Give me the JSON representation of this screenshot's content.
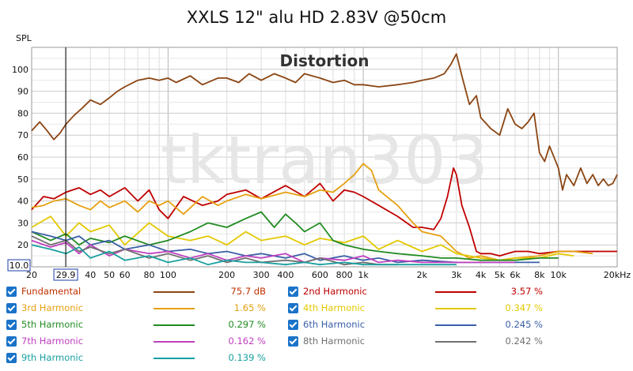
{
  "chart_data": {
    "type": "line",
    "title": "XXLS 12\" alu HD 2.83V @50cm",
    "ylabel": "SPL",
    "x_scale": "log",
    "xlim": [
      20,
      20000
    ],
    "ylim": [
      10,
      110
    ],
    "x_ticks": [
      {
        "v": 20,
        "t": "20"
      },
      {
        "v": 40,
        "t": "40"
      },
      {
        "v": 50,
        "t": "50"
      },
      {
        "v": 60,
        "t": "60"
      },
      {
        "v": 80,
        "t": "80"
      },
      {
        "v": 100,
        "t": "100"
      },
      {
        "v": 200,
        "t": "200"
      },
      {
        "v": 300,
        "t": "300"
      },
      {
        "v": 400,
        "t": "400"
      },
      {
        "v": 600,
        "t": "600"
      },
      {
        "v": 800,
        "t": "800"
      },
      {
        "v": 1000,
        "t": "1k"
      },
      {
        "v": 2000,
        "t": "2k"
      },
      {
        "v": 3000,
        "t": "3k"
      },
      {
        "v": 4000,
        "t": "4k"
      },
      {
        "v": 5000,
        "t": "5k"
      },
      {
        "v": 6000,
        "t": "6k"
      },
      {
        "v": 8000,
        "t": "8k"
      },
      {
        "v": 10000,
        "t": "10k"
      },
      {
        "v": 20000,
        "t": "20kHz"
      }
    ],
    "y_ticks": [
      {
        "v": 20,
        "t": "20"
      },
      {
        "v": 30,
        "t": "30"
      },
      {
        "v": 40,
        "t": "40"
      },
      {
        "v": 50,
        "t": "50"
      },
      {
        "v": 60,
        "t": "60"
      },
      {
        "v": 70,
        "t": "70"
      },
      {
        "v": 80,
        "t": "80"
      },
      {
        "v": 90,
        "t": "90"
      },
      {
        "v": 100,
        "t": "100"
      }
    ],
    "cursor": {
      "x": 29.9,
      "x_label": "29.9",
      "y_label": "10.0"
    },
    "annotation": "Distortion",
    "watermark": "tktran303",
    "grid": true,
    "series": [
      {
        "name": "Fundamental",
        "color": "#8b4513",
        "value": "75.7 dB",
        "x": [
          20,
          22,
          24,
          26,
          28,
          30,
          33,
          36,
          40,
          45,
          50,
          55,
          60,
          70,
          80,
          90,
          100,
          110,
          130,
          150,
          180,
          200,
          230,
          260,
          300,
          350,
          400,
          450,
          500,
          600,
          700,
          800,
          900,
          1000,
          1200,
          1500,
          1800,
          2000,
          2300,
          2600,
          2800,
          3000,
          3200,
          3500,
          3800,
          4000,
          4500,
          5000,
          5500,
          6000,
          6500,
          7000,
          7500,
          8000,
          8500,
          9000,
          10000,
          10500,
          11000,
          12000,
          13000,
          14000,
          15000,
          16000,
          17000,
          18000,
          19000,
          20000
        ],
        "y": [
          72,
          76,
          72,
          68,
          71,
          75,
          79,
          82,
          86,
          84,
          87,
          90,
          92,
          95,
          96,
          95,
          96,
          94,
          97,
          93,
          96,
          96,
          94,
          98,
          95,
          98,
          96,
          94,
          98,
          96,
          94,
          95,
          93,
          93,
          92,
          93,
          94,
          95,
          96,
          98,
          102,
          107,
          97,
          84,
          88,
          78,
          73,
          70,
          82,
          75,
          73,
          76,
          80,
          62,
          58,
          65,
          55,
          45,
          52,
          47,
          55,
          48,
          52,
          47,
          50,
          47,
          48,
          52
        ]
      },
      {
        "name": "2nd Harmonic",
        "color": "#c00000",
        "value": "3.57 %",
        "x": [
          20,
          23,
          26,
          30,
          35,
          40,
          45,
          50,
          60,
          70,
          80,
          90,
          100,
          120,
          150,
          180,
          200,
          250,
          300,
          400,
          500,
          600,
          700,
          800,
          900,
          1000,
          1200,
          1500,
          1800,
          2000,
          2300,
          2500,
          2700,
          2900,
          3000,
          3200,
          3500,
          3800,
          4000,
          4500,
          5000,
          6000,
          7000,
          8000,
          10000,
          12000,
          15000,
          20000
        ],
        "y": [
          36,
          42,
          41,
          44,
          46,
          43,
          45,
          42,
          46,
          40,
          45,
          36,
          32,
          42,
          38,
          40,
          43,
          45,
          41,
          47,
          42,
          48,
          40,
          45,
          44,
          42,
          38,
          33,
          28,
          28,
          27,
          32,
          42,
          55,
          52,
          38,
          28,
          17,
          16,
          16,
          15,
          17,
          17,
          16,
          17,
          17,
          17,
          17
        ]
      },
      {
        "name": "3rd Harmonic",
        "color": "#e6a010",
        "value": "1.65 %",
        "x": [
          20,
          23,
          26,
          30,
          35,
          40,
          45,
          50,
          60,
          70,
          80,
          90,
          100,
          120,
          150,
          180,
          200,
          250,
          300,
          400,
          500,
          600,
          700,
          800,
          900,
          1000,
          1100,
          1200,
          1500,
          1800,
          2000,
          2500,
          3000,
          3500,
          4000,
          5000,
          6000,
          8000,
          10000,
          12000,
          15000
        ],
        "y": [
          37,
          38,
          40,
          41,
          38,
          36,
          40,
          37,
          40,
          35,
          40,
          38,
          40,
          34,
          42,
          38,
          40,
          43,
          41,
          44,
          42,
          45,
          44,
          48,
          52,
          57,
          54,
          45,
          38,
          30,
          26,
          24,
          17,
          14,
          15,
          13,
          14,
          15,
          17,
          17,
          16
        ]
      },
      {
        "name": "4th Harmonic",
        "color": "#e3c800",
        "value": "0.347 %",
        "x": [
          20,
          25,
          30,
          35,
          40,
          50,
          60,
          80,
          100,
          130,
          160,
          200,
          250,
          300,
          400,
          500,
          600,
          800,
          1000,
          1200,
          1500,
          2000,
          2500,
          3000,
          4000,
          5000,
          6000,
          8000,
          10000,
          12000
        ],
        "y": [
          28,
          33,
          24,
          30,
          26,
          29,
          20,
          30,
          24,
          22,
          24,
          20,
          26,
          22,
          24,
          20,
          23,
          21,
          24,
          18,
          22,
          17,
          20,
          16,
          14,
          13,
          14,
          14,
          16,
          15
        ]
      },
      {
        "name": "5th Harmonic",
        "color": "#228b22",
        "value": "0.297 %",
        "x": [
          20,
          25,
          30,
          35,
          40,
          50,
          60,
          80,
          100,
          130,
          160,
          200,
          250,
          300,
          350,
          400,
          450,
          500,
          600,
          700,
          800,
          1000,
          1200,
          1500,
          2000,
          2500,
          3000,
          4000,
          5000,
          6000,
          8000,
          10000
        ],
        "y": [
          26,
          22,
          25,
          20,
          23,
          21,
          24,
          20,
          22,
          26,
          30,
          28,
          32,
          35,
          28,
          34,
          30,
          26,
          30,
          22,
          20,
          18,
          17,
          16,
          15,
          14,
          14,
          13,
          13,
          13,
          14,
          14
        ]
      },
      {
        "name": "6th Harmonic",
        "color": "#3a5fa8",
        "value": "0.245 %",
        "x": [
          20,
          25,
          30,
          35,
          40,
          50,
          60,
          80,
          100,
          130,
          160,
          200,
          250,
          300,
          400,
          500,
          600,
          800,
          1000,
          1200,
          1500,
          2000,
          3000,
          4000,
          6000,
          8000
        ],
        "y": [
          26,
          24,
          22,
          24,
          20,
          22,
          18,
          20,
          17,
          18,
          16,
          17,
          15,
          16,
          14,
          16,
          13,
          15,
          13,
          14,
          12,
          13,
          12,
          12,
          12,
          12
        ]
      },
      {
        "name": "7th Harmonic",
        "color": "#c040c0",
        "value": "0.162 %",
        "x": [
          20,
          25,
          30,
          35,
          40,
          50,
          60,
          80,
          100,
          130,
          160,
          200,
          250,
          300,
          400,
          500,
          600,
          800,
          1000,
          1200,
          1500,
          2000,
          3000,
          4000,
          6000
        ],
        "y": [
          22,
          19,
          21,
          16,
          20,
          15,
          18,
          16,
          17,
          14,
          16,
          13,
          15,
          14,
          16,
          12,
          14,
          13,
          15,
          12,
          13,
          12,
          12,
          12,
          12
        ]
      },
      {
        "name": "8th Harmonic",
        "color": "#707070",
        "value": "0.242 %",
        "x": [
          20,
          25,
          30,
          35,
          40,
          50,
          60,
          80,
          100,
          130,
          160,
          200,
          250,
          300,
          400,
          500,
          600,
          800,
          1000,
          1200,
          1500
        ],
        "y": [
          24,
          20,
          22,
          17,
          19,
          16,
          18,
          14,
          16,
          13,
          15,
          12,
          14,
          12,
          13,
          12,
          14,
          11,
          12,
          11,
          11
        ]
      },
      {
        "name": "9th Harmonic",
        "color": "#1aa0a0",
        "value": "0.139 %",
        "x": [
          20,
          25,
          30,
          35,
          40,
          50,
          60,
          80,
          100,
          130,
          160,
          200,
          250,
          300,
          400,
          500,
          600,
          800,
          1000,
          1200,
          1500,
          2000,
          3000
        ],
        "y": [
          20,
          18,
          16,
          19,
          14,
          17,
          13,
          15,
          12,
          14,
          11,
          13,
          12,
          12,
          11,
          12,
          11,
          12,
          11,
          11,
          11,
          11,
          11
        ]
      }
    ]
  }
}
